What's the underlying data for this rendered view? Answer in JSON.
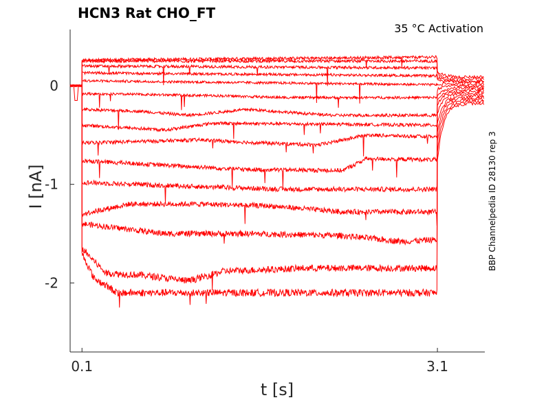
{
  "chart_data": {
    "type": "line",
    "title": "HCN3  Rat  CHO_FT",
    "annotation": "35 °C  Activation",
    "side_label": "BBP Channelpedia ID 28130 rep 3",
    "xlabel": "t [s]",
    "ylabel": "I [nA]",
    "xlim": [
      0,
      3.5
    ],
    "ylim": [
      -2.7,
      0.57
    ],
    "xticks": [
      0.1,
      3.1
    ],
    "xtick_labels": [
      "0.1",
      "3.1"
    ],
    "yticks": [
      0,
      -1,
      -2
    ],
    "ytick_labels": [
      "0",
      "-1",
      "-2"
    ],
    "grid": false,
    "line_color": "#ff0000",
    "step": {
      "start": 0.1,
      "end": 3.1
    },
    "series": [
      {
        "baseline": 0.0,
        "levels": [
          [
            0.1,
            0.26
          ],
          [
            3.1,
            0.29
          ]
        ],
        "tail": 0.09
      },
      {
        "baseline": 0.0,
        "levels": [
          [
            0.1,
            0.25
          ],
          [
            3.1,
            0.25
          ]
        ],
        "tail": 0.07
      },
      {
        "baseline": 0.0,
        "levels": [
          [
            0.1,
            0.2
          ],
          [
            3.1,
            0.18
          ]
        ],
        "tail": 0.05
      },
      {
        "baseline": 0.0,
        "levels": [
          [
            0.1,
            0.13
          ],
          [
            3.1,
            0.1
          ]
        ],
        "tail": 0.04
      },
      {
        "baseline": 0.0,
        "levels": [
          [
            0.1,
            0.05
          ],
          [
            3.1,
            0.01
          ]
        ],
        "tail": 0.02
      },
      {
        "baseline": 0.0,
        "levels": [
          [
            0.1,
            -0.08
          ],
          [
            1.2,
            -0.1
          ],
          [
            1.8,
            -0.12
          ],
          [
            3.1,
            -0.12
          ]
        ],
        "tail": 0.0
      },
      {
        "baseline": 0.0,
        "levels": [
          [
            0.1,
            -0.24
          ],
          [
            0.6,
            -0.26
          ],
          [
            1.0,
            -0.3
          ],
          [
            1.5,
            -0.24
          ],
          [
            2.2,
            -0.3
          ],
          [
            3.1,
            -0.3
          ]
        ],
        "tail": -0.02
      },
      {
        "baseline": 0.0,
        "levels": [
          [
            0.1,
            -0.4
          ],
          [
            0.8,
            -0.45
          ],
          [
            1.2,
            -0.38
          ],
          [
            3.1,
            -0.4
          ]
        ],
        "tail": -0.04
      },
      {
        "baseline": 0.0,
        "levels": [
          [
            0.1,
            -0.58
          ],
          [
            1.1,
            -0.55
          ],
          [
            1.6,
            -0.58
          ],
          [
            2.1,
            -0.6
          ],
          [
            2.5,
            -0.5
          ],
          [
            3.1,
            -0.52
          ]
        ],
        "tail": -0.06
      },
      {
        "baseline": 0.0,
        "levels": [
          [
            0.1,
            -0.76
          ],
          [
            0.7,
            -0.8
          ],
          [
            1.5,
            -0.85
          ],
          [
            2.3,
            -0.86
          ],
          [
            2.5,
            -0.74
          ],
          [
            3.1,
            -0.75
          ]
        ],
        "tail": -0.08
      },
      {
        "baseline": 0.0,
        "levels": [
          [
            0.1,
            -0.98
          ],
          [
            1.0,
            -1.02
          ],
          [
            1.8,
            -1.05
          ],
          [
            2.4,
            -1.05
          ],
          [
            3.1,
            -1.05
          ]
        ],
        "tail": -0.1
      },
      {
        "baseline": 0.0,
        "levels": [
          [
            0.1,
            -1.3
          ],
          [
            0.5,
            -1.2
          ],
          [
            1.1,
            -1.2
          ],
          [
            1.7,
            -1.22
          ],
          [
            2.3,
            -1.28
          ],
          [
            3.1,
            -1.28
          ]
        ],
        "tail": -0.12
      },
      {
        "baseline": 0.0,
        "levels": [
          [
            0.1,
            -1.4
          ],
          [
            0.8,
            -1.5
          ],
          [
            1.5,
            -1.5
          ],
          [
            2.3,
            -1.52
          ],
          [
            2.8,
            -1.58
          ],
          [
            3.1,
            -1.56
          ]
        ],
        "tail": -0.14
      },
      {
        "baseline": 0.0,
        "levels": [
          [
            0.1,
            -1.65
          ],
          [
            0.3,
            -1.9
          ],
          [
            0.6,
            -1.92
          ],
          [
            1.0,
            -1.98
          ],
          [
            1.3,
            -1.88
          ],
          [
            2.0,
            -1.85
          ],
          [
            3.1,
            -1.85
          ]
        ],
        "tail": -0.16
      },
      {
        "baseline": 0.0,
        "levels": [
          [
            0.1,
            -1.7
          ],
          [
            0.2,
            -1.95
          ],
          [
            0.4,
            -2.1
          ],
          [
            1.0,
            -2.1
          ],
          [
            1.5,
            -2.1
          ],
          [
            2.0,
            -2.1
          ],
          [
            3.1,
            -2.1
          ]
        ],
        "tail": -0.18
      }
    ]
  }
}
